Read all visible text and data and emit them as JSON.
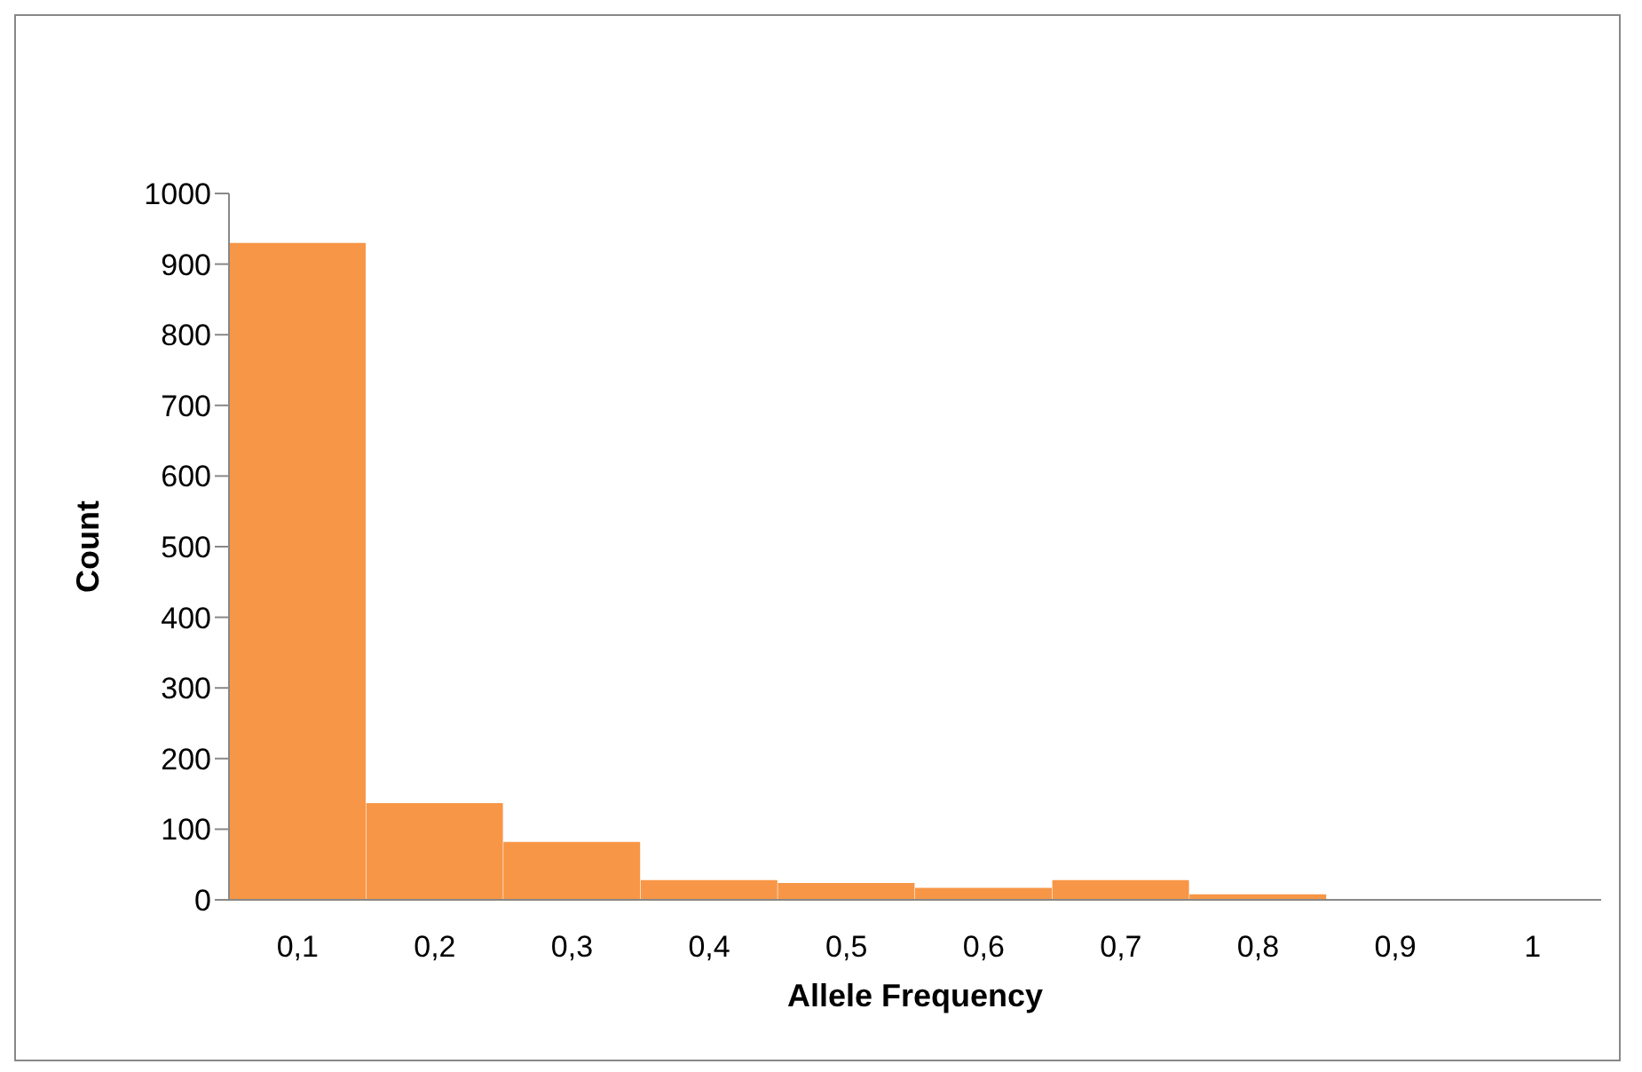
{
  "chart_data": {
    "type": "bar",
    "xlabel": "Allele Frequency",
    "ylabel": "Count",
    "categories": [
      "0,1",
      "0,2",
      "0,3",
      "0,4",
      "0,5",
      "0,6",
      "0,7",
      "0,8",
      "0,9",
      "1"
    ],
    "values": [
      930,
      137,
      82,
      28,
      24,
      17,
      28,
      8,
      null,
      null
    ],
    "color": "#f79646",
    "ylim": [
      0,
      1000
    ],
    "yticks": [
      0,
      100,
      200,
      300,
      400,
      500,
      600,
      700,
      800,
      900,
      1000
    ],
    "grid": false
  }
}
